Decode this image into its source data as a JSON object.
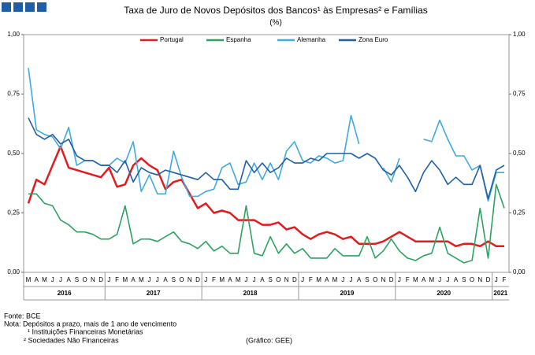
{
  "chart_data": {
    "type": "line",
    "title": "Taxa de Juro de Novos Depósitos dos Bancos¹ às Empresas² e Famílias",
    "subtitle": "(%)",
    "categories": [
      "M",
      "A",
      "M",
      "J",
      "J",
      "A",
      "S",
      "O",
      "N",
      "D",
      "J",
      "F",
      "M",
      "A",
      "M",
      "J",
      "J",
      "A",
      "S",
      "O",
      "N",
      "D",
      "J",
      "F",
      "M",
      "A",
      "M",
      "J",
      "J",
      "A",
      "S",
      "O",
      "N",
      "D",
      "J",
      "F",
      "M",
      "A",
      "M",
      "J",
      "J",
      "A",
      "S",
      "O",
      "N",
      "D",
      "J",
      "F",
      "M",
      "A",
      "M",
      "J",
      "J",
      "A",
      "S",
      "O",
      "N",
      "D",
      "J",
      "F"
    ],
    "years": [
      "2016",
      "2017",
      "2018",
      "2019",
      "2020",
      "2021"
    ],
    "ylim": [
      0,
      1
    ],
    "yticks": [
      {
        "value": 0,
        "label": "0,00"
      },
      {
        "value": 0.25,
        "label": "0,25"
      },
      {
        "value": 0.5,
        "label": "0,50"
      },
      {
        "value": 0.75,
        "label": "0,75"
      },
      {
        "value": 1,
        "label": "1,00"
      }
    ],
    "series": [
      {
        "name": "Portugal",
        "color": "#e41a1c",
        "values": [
          0.29,
          0.39,
          0.37,
          0.45,
          0.53,
          0.44,
          0.43,
          0.42,
          0.41,
          0.4,
          0.44,
          0.36,
          0.37,
          0.45,
          0.48,
          0.45,
          0.43,
          0.35,
          0.38,
          0.39,
          0.33,
          0.27,
          0.29,
          0.25,
          0.26,
          0.25,
          0.22,
          0.22,
          0.22,
          0.2,
          0.2,
          0.21,
          0.18,
          0.19,
          0.16,
          0.14,
          0.16,
          0.17,
          0.16,
          0.14,
          0.15,
          0.12,
          0.12,
          0.12,
          0.13,
          0.15,
          0.17,
          0.15,
          0.13,
          0.13,
          0.13,
          0.13,
          0.13,
          0.11,
          0.12,
          0.12,
          0.11,
          0.13,
          0.11,
          0.11
        ]
      },
      {
        "name": "Espanha",
        "color": "#2ca25f",
        "values": [
          0.33,
          0.33,
          0.29,
          0.28,
          0.22,
          0.2,
          0.17,
          0.17,
          0.16,
          0.14,
          0.14,
          0.16,
          0.28,
          0.12,
          0.14,
          0.14,
          0.13,
          0.15,
          0.17,
          0.13,
          0.12,
          0.1,
          0.13,
          0.09,
          0.11,
          0.08,
          0.08,
          0.28,
          0.08,
          0.07,
          0.15,
          0.08,
          0.12,
          0.08,
          0.1,
          0.06,
          0.06,
          0.06,
          0.1,
          0.07,
          0.07,
          0.07,
          0.15,
          0.06,
          0.09,
          0.14,
          0.09,
          0.06,
          0.05,
          0.07,
          0.08,
          0.19,
          0.08,
          0.06,
          0.04,
          0.05,
          0.27,
          0.06,
          0.37,
          0.27
        ]
      },
      {
        "name": "Alemanha",
        "color": "#3fa9e0",
        "values": [
          0.86,
          0.6,
          0.58,
          0.57,
          0.52,
          0.61,
          0.45,
          0.47,
          0.47,
          0.45,
          0.45,
          0.48,
          0.46,
          0.55,
          0.34,
          0.41,
          0.33,
          0.33,
          0.51,
          0.4,
          0.32,
          0.32,
          0.34,
          0.35,
          0.44,
          0.46,
          0.37,
          0.38,
          0.46,
          0.39,
          0.46,
          0.39,
          0.51,
          0.55,
          0.47,
          0.46,
          0.49,
          0.48,
          0.46,
          0.47,
          0.66,
          0.54,
          null,
          null,
          0.44,
          0.38,
          0.48,
          null,
          null,
          0.56,
          0.55,
          0.64,
          0.56,
          0.49,
          0.49,
          0.43,
          0.45,
          0.3,
          0.42,
          0.42
        ]
      },
      {
        "name": "Zona Euro",
        "color": "#1f5fa8",
        "values": [
          0.65,
          0.58,
          0.56,
          0.58,
          0.54,
          0.56,
          0.49,
          0.47,
          0.47,
          0.45,
          0.45,
          0.42,
          0.47,
          0.38,
          0.44,
          0.42,
          0.41,
          0.43,
          0.42,
          0.41,
          0.4,
          0.39,
          0.42,
          0.39,
          0.39,
          0.35,
          0.35,
          0.47,
          0.42,
          0.46,
          0.42,
          0.44,
          0.48,
          0.46,
          0.46,
          0.48,
          0.47,
          0.5,
          0.5,
          0.5,
          0.5,
          0.48,
          0.5,
          0.48,
          0.43,
          0.41,
          0.45,
          0.4,
          0.34,
          0.42,
          0.47,
          0.43,
          0.37,
          0.4,
          0.37,
          0.37,
          0.45,
          0.31,
          0.43,
          0.45
        ]
      }
    ],
    "notes": [
      "Fonte: BCE",
      "Nota: Depósitos a prazo, mais de 1 ano de vencimento",
      "¹ Instituições Financeiras Monetárias",
      "² Sociedades Não Financeiras"
    ],
    "credit": "(Gráfico: GEE)"
  }
}
